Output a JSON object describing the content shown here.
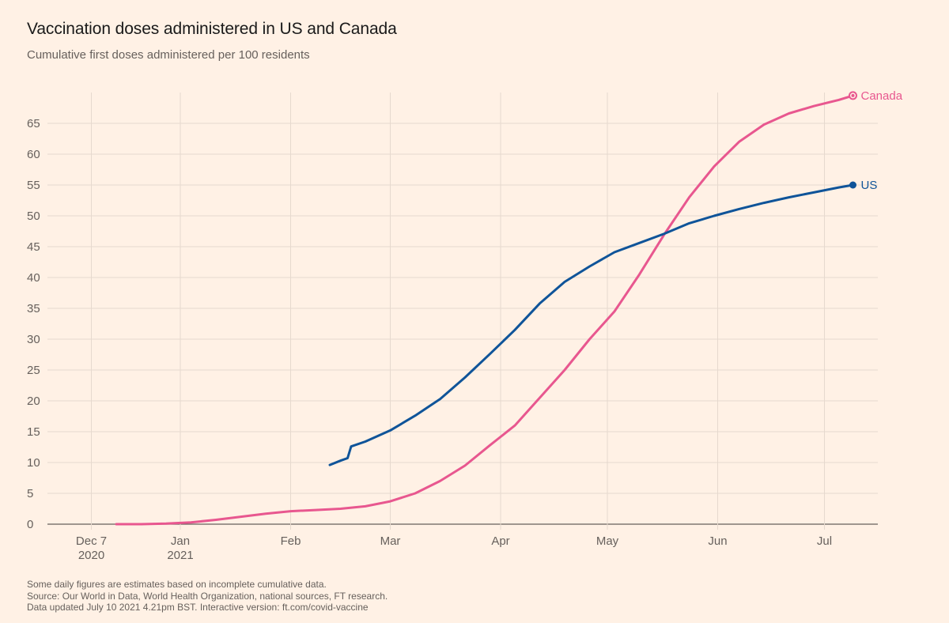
{
  "header": {
    "title": "Vaccination doses administered in US and Canada",
    "subtitle": "Cumulative first doses administered per 100 residents"
  },
  "footnotes": {
    "note": "Some daily figures are estimates based on incomplete cumulative data.",
    "source": "Source: Our World in Data, World Health Organization, national sources, FT research.",
    "updated": "Data updated July 10 2021 4.21pm BST. Interactive version: ft.com/covid-vaccine"
  },
  "colors": {
    "background": "#fff1e5",
    "grid": "#e6d9ce",
    "us": "#0f5499",
    "canada": "#e8578f",
    "axis_text": "#66605c"
  },
  "chart_data": {
    "type": "line",
    "x_domain": [
      "2020-11-26",
      "2021-07-16"
    ],
    "ylim": [
      0,
      70
    ],
    "y_ticks": [
      0,
      5,
      10,
      15,
      20,
      25,
      30,
      35,
      40,
      45,
      50,
      55,
      60,
      65
    ],
    "x_ticks": [
      {
        "date": "2020-12-07",
        "label": "Dec 7",
        "sublabel": "2020"
      },
      {
        "date": "2021-01-01",
        "label": "Jan",
        "sublabel": "2021"
      },
      {
        "date": "2021-02-01",
        "label": "Feb",
        "sublabel": ""
      },
      {
        "date": "2021-03-01",
        "label": "Mar",
        "sublabel": ""
      },
      {
        "date": "2021-04-01",
        "label": "Apr",
        "sublabel": ""
      },
      {
        "date": "2021-05-01",
        "label": "May",
        "sublabel": ""
      },
      {
        "date": "2021-06-01",
        "label": "Jun",
        "sublabel": ""
      },
      {
        "date": "2021-07-01",
        "label": "Jul",
        "sublabel": ""
      }
    ],
    "grid": true,
    "series": [
      {
        "name": "Canada",
        "color": "#e8578f",
        "points": [
          [
            "2020-12-14",
            0
          ],
          [
            "2020-12-21",
            0
          ],
          [
            "2020-12-28",
            0.1
          ],
          [
            "2021-01-04",
            0.3
          ],
          [
            "2021-01-11",
            0.7
          ],
          [
            "2021-01-18",
            1.2
          ],
          [
            "2021-01-25",
            1.7
          ],
          [
            "2021-02-01",
            2.1
          ],
          [
            "2021-02-08",
            2.3
          ],
          [
            "2021-02-15",
            2.5
          ],
          [
            "2021-02-22",
            2.9
          ],
          [
            "2021-03-01",
            3.7
          ],
          [
            "2021-03-08",
            5.0
          ],
          [
            "2021-03-15",
            7.0
          ],
          [
            "2021-03-22",
            9.5
          ],
          [
            "2021-03-29",
            12.8
          ],
          [
            "2021-04-05",
            16.0
          ],
          [
            "2021-04-12",
            20.5
          ],
          [
            "2021-04-19",
            25.0
          ],
          [
            "2021-04-26",
            30.0
          ],
          [
            "2021-05-03",
            34.5
          ],
          [
            "2021-05-10",
            40.5
          ],
          [
            "2021-05-17",
            47.0
          ],
          [
            "2021-05-24",
            53.0
          ],
          [
            "2021-05-31",
            58.0
          ],
          [
            "2021-06-07",
            62.0
          ],
          [
            "2021-06-14",
            64.8
          ],
          [
            "2021-06-21",
            66.6
          ],
          [
            "2021-06-28",
            67.8
          ],
          [
            "2021-07-05",
            68.8
          ],
          [
            "2021-07-09",
            69.5
          ]
        ]
      },
      {
        "name": "US",
        "color": "#0f5499",
        "points": [
          [
            "2021-02-12",
            9.6
          ],
          [
            "2021-02-15",
            10.3
          ],
          [
            "2021-02-17",
            10.7
          ],
          [
            "2021-02-18",
            12.6
          ],
          [
            "2021-02-22",
            13.4
          ],
          [
            "2021-03-01",
            15.2
          ],
          [
            "2021-03-08",
            17.6
          ],
          [
            "2021-03-15",
            20.3
          ],
          [
            "2021-03-22",
            23.8
          ],
          [
            "2021-03-29",
            27.6
          ],
          [
            "2021-04-05",
            31.5
          ],
          [
            "2021-04-12",
            35.8
          ],
          [
            "2021-04-19",
            39.3
          ],
          [
            "2021-04-26",
            41.8
          ],
          [
            "2021-05-03",
            44.1
          ],
          [
            "2021-05-10",
            45.6
          ],
          [
            "2021-05-17",
            47.1
          ],
          [
            "2021-05-24",
            48.8
          ],
          [
            "2021-05-31",
            50.0
          ],
          [
            "2021-06-07",
            51.1
          ],
          [
            "2021-06-14",
            52.1
          ],
          [
            "2021-06-21",
            53.0
          ],
          [
            "2021-06-28",
            53.8
          ],
          [
            "2021-07-05",
            54.6
          ],
          [
            "2021-07-09",
            55.0
          ]
        ]
      }
    ]
  }
}
